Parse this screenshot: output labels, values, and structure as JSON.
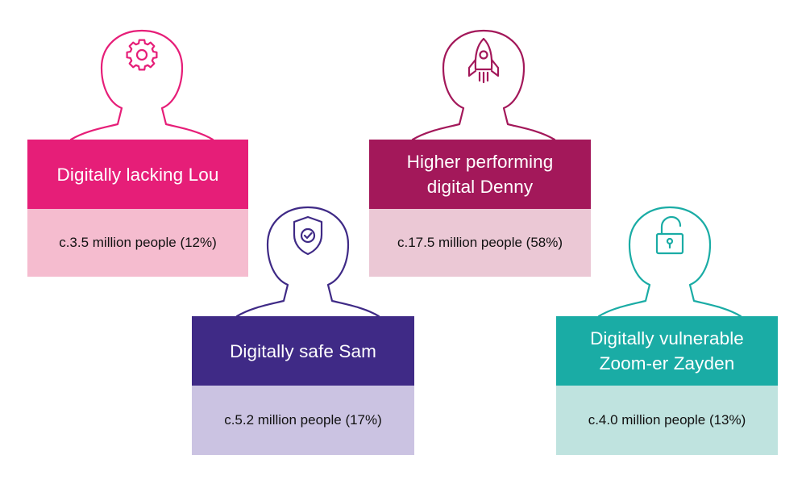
{
  "personas": [
    {
      "name": "Digitally lacking Lou",
      "population": "c.3.5 million people (12%)",
      "share_percent": 12,
      "icon": "gear-icon",
      "colors": {
        "accent": "#e61e78",
        "name_bg": "#e61e78",
        "count_bg": "#f5bccf"
      }
    },
    {
      "name": "Higher performing digital Denny",
      "population": "c.17.5 million people (58%)",
      "share_percent": 58,
      "icon": "rocket-icon",
      "colors": {
        "accent": "#a3185a",
        "name_bg": "#a3185a",
        "count_bg": "#ebc8d5"
      }
    },
    {
      "name": "Digitally safe Sam",
      "population": "c.5.2 million people (17%)",
      "share_percent": 17,
      "icon": "shield-check-icon",
      "colors": {
        "accent": "#3f2a86",
        "name_bg": "#3f2a86",
        "count_bg": "#cbc3e2"
      }
    },
    {
      "name": "Digitally vulnerable Zoom-er Zayden",
      "population": "c.4.0 million people (13%)",
      "share_percent": 13,
      "icon": "unlocked-padlock-icon",
      "colors": {
        "accent": "#1aaca5",
        "name_bg": "#1aaca5",
        "count_bg": "#bfe3df"
      }
    }
  ]
}
